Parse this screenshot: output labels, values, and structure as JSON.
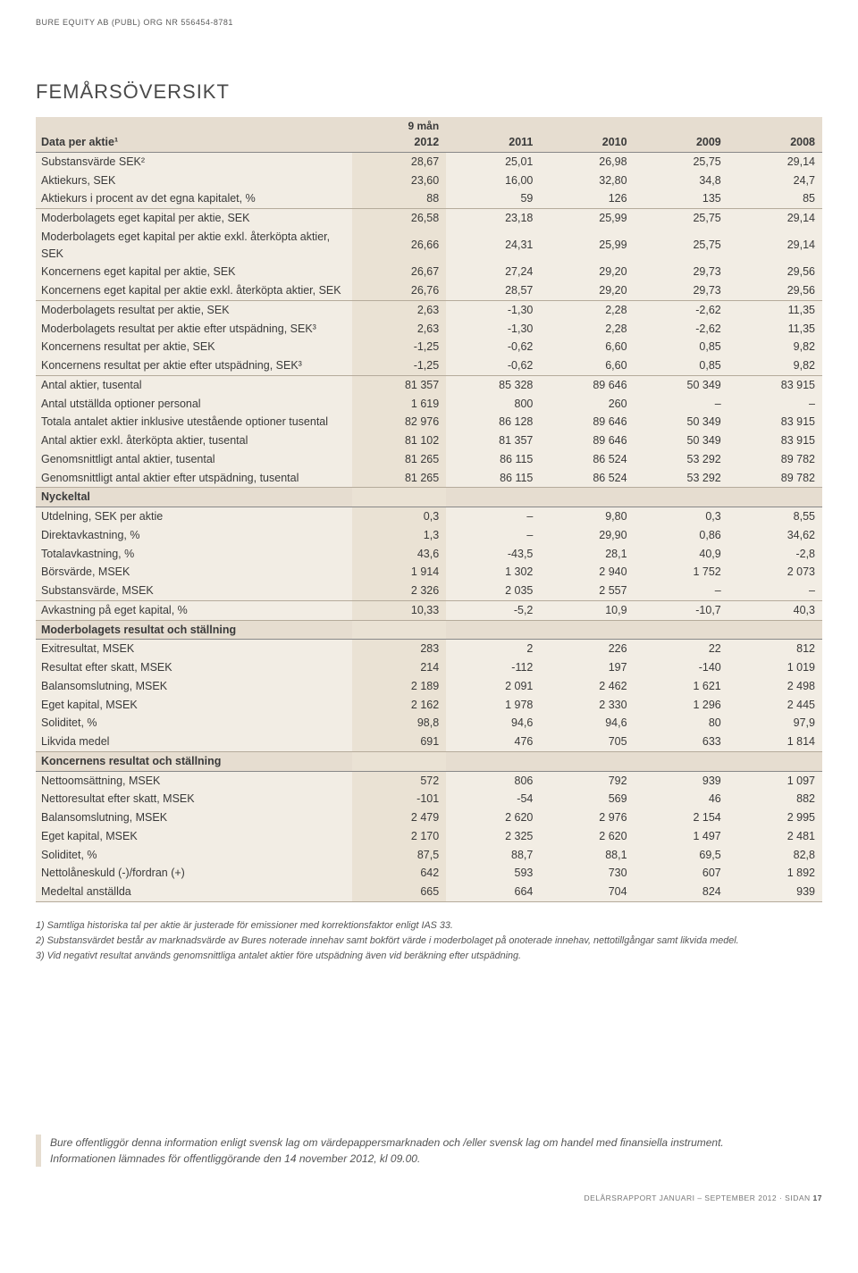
{
  "company_header": "BURE EQUITY AB (PUBL) ORG NR 556454-8781",
  "title": "FEMÅRSÖVERSIKT",
  "col_header_label": "Data per aktie¹",
  "col_header_sup": "9 mån",
  "years": [
    "2012",
    "2011",
    "2010",
    "2009",
    "2008"
  ],
  "groups": [
    {
      "rows": [
        {
          "label": "Substansvärde SEK²",
          "v": [
            "28,67",
            "25,01",
            "26,98",
            "25,75",
            "29,14"
          ]
        },
        {
          "label": "Aktiekurs, SEK",
          "v": [
            "23,60",
            "16,00",
            "32,80",
            "34,8",
            "24,7"
          ]
        },
        {
          "label": "Aktiekurs i procent av det egna kapitalet, %",
          "v": [
            "88",
            "59",
            "126",
            "135",
            "85"
          ]
        }
      ]
    },
    {
      "rows": [
        {
          "label": "Moderbolagets eget kapital per aktie, SEK",
          "v": [
            "26,58",
            "23,18",
            "25,99",
            "25,75",
            "29,14"
          ]
        },
        {
          "label": "Moderbolagets eget kapital per aktie exkl. återköpta aktier, SEK",
          "v": [
            "26,66",
            "24,31",
            "25,99",
            "25,75",
            "29,14"
          ]
        },
        {
          "label": "Koncernens eget kapital per aktie, SEK",
          "v": [
            "26,67",
            "27,24",
            "29,20",
            "29,73",
            "29,56"
          ]
        },
        {
          "label": "Koncernens eget kapital per aktie exkl. återköpta aktier, SEK",
          "v": [
            "26,76",
            "28,57",
            "29,20",
            "29,73",
            "29,56"
          ]
        }
      ]
    },
    {
      "rows": [
        {
          "label": "Moderbolagets resultat per aktie, SEK",
          "v": [
            "2,63",
            "-1,30",
            "2,28",
            "-2,62",
            "11,35"
          ]
        },
        {
          "label": "Moderbolagets resultat per aktie efter utspädning, SEK³",
          "v": [
            "2,63",
            "-1,30",
            "2,28",
            "-2,62",
            "11,35"
          ]
        },
        {
          "label": "Koncernens resultat per aktie, SEK",
          "v": [
            "-1,25",
            "-0,62",
            "6,60",
            "0,85",
            "9,82"
          ]
        },
        {
          "label": "Koncernens resultat per aktie efter utspädning, SEK³",
          "v": [
            "-1,25",
            "-0,62",
            "6,60",
            "0,85",
            "9,82"
          ]
        }
      ]
    },
    {
      "rows": [
        {
          "label": "Antal aktier, tusental",
          "v": [
            "81 357",
            "85 328",
            "89 646",
            "50 349",
            "83 915"
          ]
        },
        {
          "label": "Antal utställda optioner personal",
          "v": [
            "1 619",
            "800",
            "260",
            "–",
            "–"
          ]
        },
        {
          "label": "Totala antalet aktier inklusive utestående optioner tusental",
          "v": [
            "82 976",
            "86 128",
            "89 646",
            "50 349",
            "83 915"
          ]
        },
        {
          "label": "Antal aktier exkl. återköpta aktier, tusental",
          "v": [
            "81 102",
            "81 357",
            "89 646",
            "50 349",
            "83 915"
          ]
        },
        {
          "label": "Genomsnittligt antal aktier, tusental",
          "v": [
            "81 265",
            "86 115",
            "86 524",
            "53 292",
            "89 782"
          ]
        },
        {
          "label": "Genomsnittligt antal aktier efter utspädning, tusental",
          "v": [
            "81 265",
            "86 115",
            "86 524",
            "53 292",
            "89 782"
          ]
        }
      ]
    },
    {
      "header": "Nyckeltal",
      "rows": [
        {
          "label": "Utdelning, SEK per aktie",
          "v": [
            "0,3",
            "–",
            "9,80",
            "0,3",
            "8,55"
          ]
        },
        {
          "label": "Direktavkastning, %",
          "v": [
            "1,3",
            "–",
            "29,90",
            "0,86",
            "34,62"
          ]
        },
        {
          "label": "Totalavkastning, %",
          "v": [
            "43,6",
            "-43,5",
            "28,1",
            "40,9",
            "-2,8"
          ]
        },
        {
          "label": "Börsvärde, MSEK",
          "v": [
            "1 914",
            "1 302",
            "2 940",
            "1 752",
            "2 073"
          ]
        },
        {
          "label": "Substansvärde, MSEK",
          "v": [
            "2 326",
            "2 035",
            "2 557",
            "–",
            "–"
          ]
        }
      ]
    },
    {
      "rows": [
        {
          "label": "Avkastning på eget kapital, %",
          "v": [
            "10,33",
            "-5,2",
            "10,9",
            "-10,7",
            "40,3"
          ]
        }
      ]
    },
    {
      "header": "Moderbolagets resultat och ställning",
      "rows": [
        {
          "label": "Exitresultat, MSEK",
          "v": [
            "283",
            "2",
            "226",
            "22",
            "812"
          ]
        },
        {
          "label": "Resultat efter skatt, MSEK",
          "v": [
            "214",
            "-112",
            "197",
            "-140",
            "1 019"
          ]
        },
        {
          "label": "Balansomslutning, MSEK",
          "v": [
            "2 189",
            "2 091",
            "2 462",
            "1 621",
            "2 498"
          ]
        },
        {
          "label": "Eget kapital, MSEK",
          "v": [
            "2 162",
            "1 978",
            "2 330",
            "1 296",
            "2 445"
          ]
        },
        {
          "label": "Soliditet, %",
          "v": [
            "98,8",
            "94,6",
            "94,6",
            "80",
            "97,9"
          ]
        },
        {
          "label": "Likvida medel",
          "v": [
            "691",
            "476",
            "705",
            "633",
            "1 814"
          ]
        }
      ]
    },
    {
      "header": "Koncernens resultat och ställning",
      "rows": [
        {
          "label": "Nettoomsättning, MSEK",
          "v": [
            "572",
            "806",
            "792",
            "939",
            "1 097"
          ]
        },
        {
          "label": "Nettoresultat efter skatt, MSEK",
          "v": [
            "-101",
            "-54",
            "569",
            "46",
            "882"
          ]
        },
        {
          "label": "Balansomslutning, MSEK",
          "v": [
            "2 479",
            "2 620",
            "2 976",
            "2 154",
            "2 995"
          ]
        },
        {
          "label": "Eget kapital, MSEK",
          "v": [
            "2 170",
            "2 325",
            "2 620",
            "1 497",
            "2 481"
          ]
        },
        {
          "label": "Soliditet, %",
          "v": [
            "87,5",
            "88,7",
            "88,1",
            "69,5",
            "82,8"
          ]
        },
        {
          "label": "Nettolåneskuld (-)/fordran (+)",
          "v": [
            "642",
            "593",
            "730",
            "607",
            "1 892"
          ]
        },
        {
          "label": "Medeltal anställda",
          "v": [
            "665",
            "664",
            "704",
            "824",
            "939"
          ]
        }
      ]
    }
  ],
  "footnotes": [
    "1) Samtliga historiska tal per aktie är justerade för emissioner med korrektionsfaktor enligt IAS 33.",
    "2) Substansvärdet består av marknadsvärde av Bures noterade innehav samt bokfört värde i moderbolaget på onoterade innehav, nettotillgångar samt likvida medel.",
    "3) Vid negativt resultat används genomsnittliga antalet aktier före utspädning även vid beräkning efter utspädning."
  ],
  "disclosure": [
    "Bure offentliggör denna information enligt svensk lag om värdepappersmarknaden och /eller svensk lag om handel med finansiella instrument.",
    "Informationen lämnades för offentliggörande den 14 november 2012, kl 09.00."
  ],
  "footer_text": "DELÅRSRAPPORT JANUARI – SEPTEMBER 2012 · SIDAN",
  "footer_page": "17"
}
